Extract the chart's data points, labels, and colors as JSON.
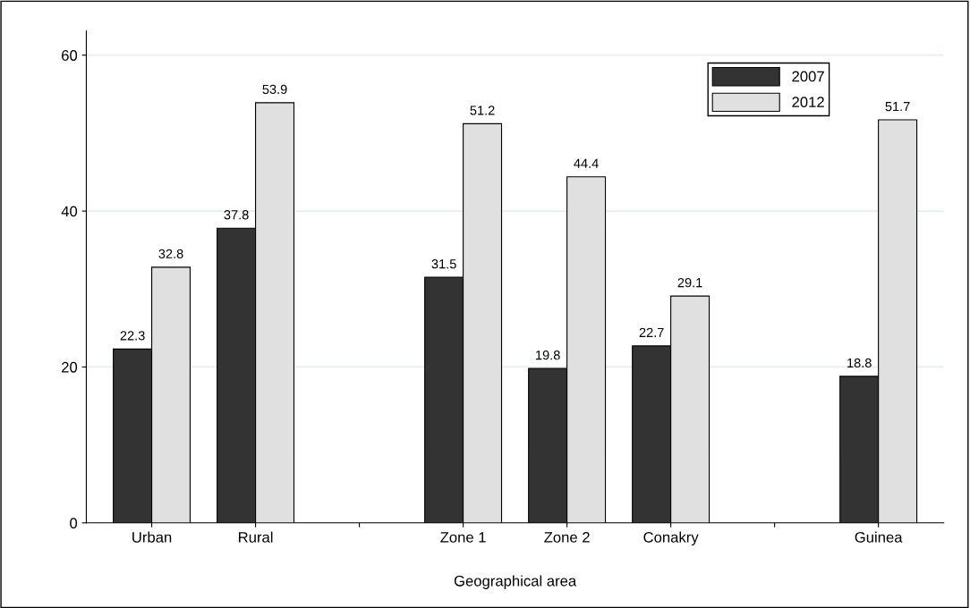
{
  "chart_data": {
    "type": "bar",
    "xlabel": "Geographical area",
    "categories": [
      "Urban",
      "Rural",
      null,
      "Zone 1",
      "Zone 2",
      "Conakry",
      null,
      "Guinea"
    ],
    "series": [
      {
        "name": "2007",
        "color": "#333333",
        "values": [
          22.3,
          37.8,
          null,
          31.5,
          19.8,
          22.7,
          null,
          18.8
        ]
      },
      {
        "name": "2012",
        "color": "#e0e0e0",
        "values": [
          32.8,
          53.9,
          null,
          51.2,
          44.4,
          29.1,
          null,
          51.7
        ]
      }
    ],
    "ylim": [
      0,
      63.1
    ],
    "yticks": [
      0,
      20,
      40,
      60
    ],
    "grid": "y",
    "legend": "top right",
    "data_labels": true
  }
}
